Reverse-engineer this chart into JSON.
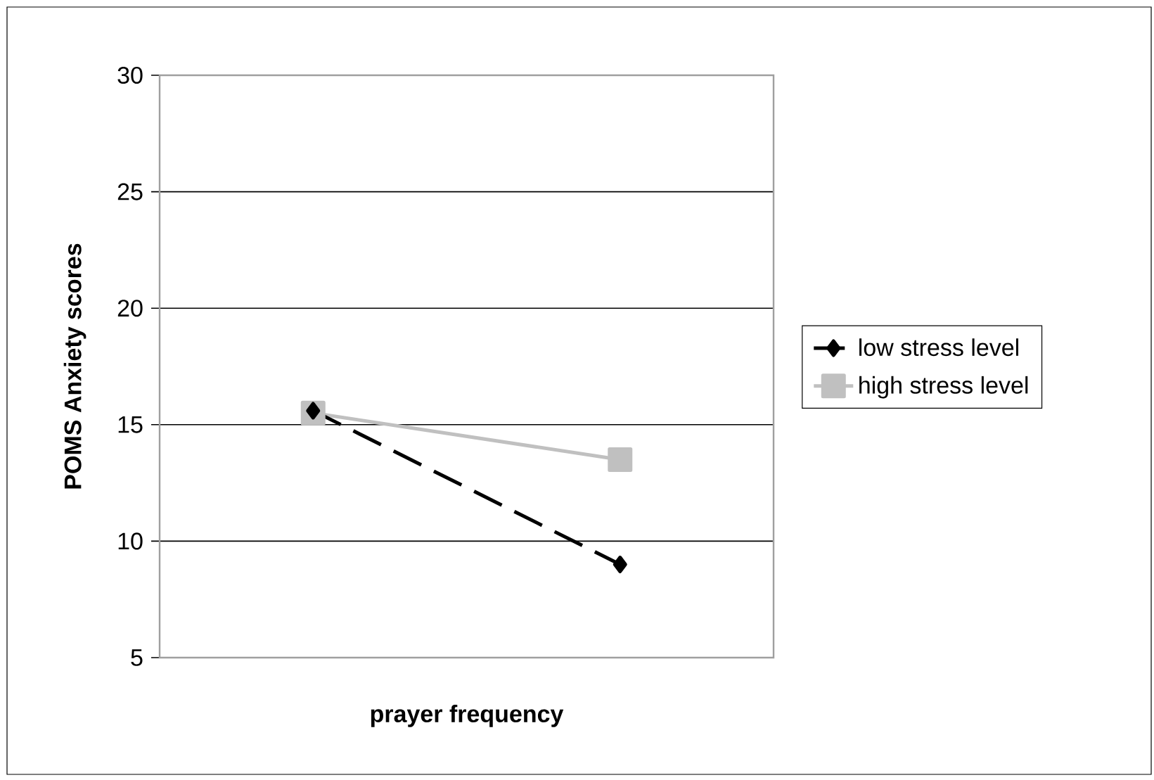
{
  "chart_data": {
    "type": "line",
    "xlabel": "prayer frequency",
    "ylabel": "POMS Anxiety scores",
    "categories": [
      null,
      null
    ],
    "ylim": [
      5,
      30
    ],
    "yticks": [
      5,
      10,
      15,
      20,
      25,
      30
    ],
    "grid": "y",
    "legend": "right",
    "tick_labels": "y",
    "series": [
      {
        "name": "low stress level",
        "color": "#000000",
        "values": [
          15.6,
          9
        ],
        "marker": "diamond",
        "line_style": "dashed"
      },
      {
        "name": "high stress level",
        "color": "#c0c0c0",
        "values": [
          15.5,
          13.5
        ],
        "marker": "square",
        "line_style": "solid"
      }
    ]
  }
}
